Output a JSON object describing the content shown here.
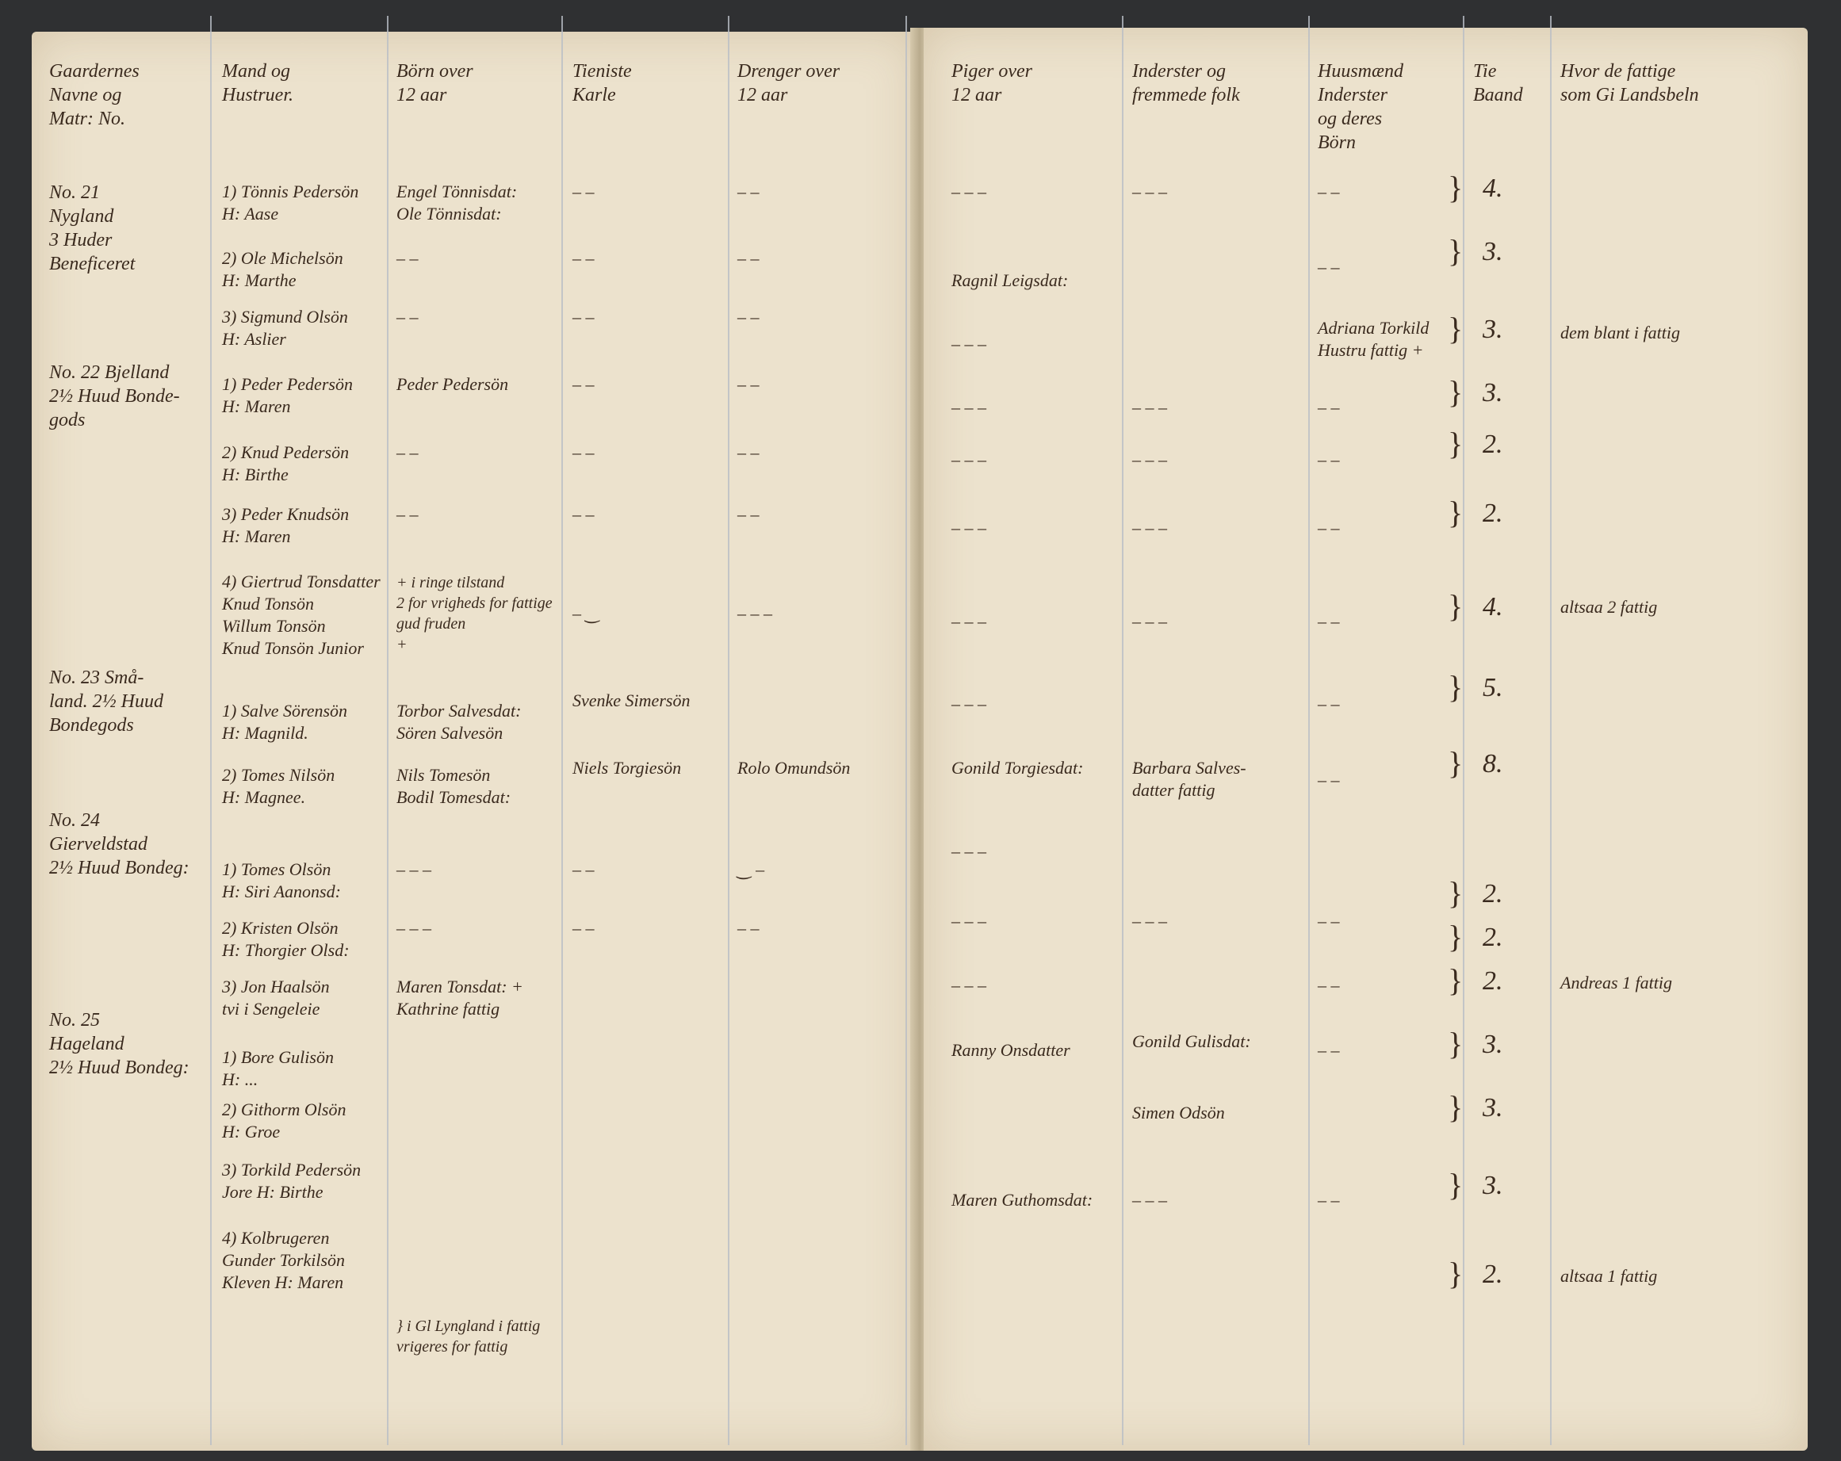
{
  "document": {
    "left_page": {
      "headers": [
        "Gaardernes\nNavne og\nMatr: No.",
        "Mand og\nHustruer.",
        "Börn over\n12 aar",
        "Tieniste\nKarle",
        "Drenger over\n12 aar"
      ],
      "farms": [
        "No. 21\nNygland\n3 Huder\nBeneficeret",
        "No. 22 Bjelland\n2½ Huud Bonde-\ngods",
        "No. 23 Små-\nland. 2½ Huud\nBondegods",
        "No. 24\nGierveldstad\n2½ Huud Bondeg:",
        "No. 25\nHageland\n2½ Huud Bondeg:"
      ],
      "couples": [
        "1) Tönnis Pedersön\nH: Aase",
        "2) Ole Michelsön\nH: Marthe",
        "3) Sigmund Olsön\nH: Aslier",
        "1) Peder Pedersön\nH: Maren",
        "2) Knud Pedersön\nH: Birthe",
        "3) Peder Knudsön\nH: Maren",
        "4) Giertrud Tonsdatter\nKnud Tonsön\nWillum Tonsön\nKnud Tonsön Junior",
        "1) Salve Sörensön\nH: Magnild.",
        "2) Tomes Nilsön\nH: Magnee.",
        "1) Tomes Olsön\nH: Siri Aanonsd:",
        "2) Kristen Olsön\nH: Thorgier Olsd:",
        "3) Jon Haalsön\ntvi i Sengeleie",
        "1) Bore Gulisön\nH: ...",
        "2) Githorm Olsön\nH: Groe",
        "3) Torkild Pedersön\nJore H: Birthe",
        "4) Kolbrugeren\nGunder Torkilsön\nKleven H: Maren"
      ],
      "children_over_12": [
        "Engel Tönnisdat:\nOle Tönnisdat:",
        "–      –",
        "–      –",
        "Peder Pedersön",
        "–      –",
        "–      –",
        "+ i ringe tilstand\n2 for vrigheds for fattige\ngud fruden\n+",
        "Torbor Salvesdat:\nSören Salvesön",
        "Nils Tomesön\nBodil Tomesdat:",
        "–   –   –",
        "–    –  –",
        "Maren Tonsdat:  +\nKathrine fattig",
        "} i Gl Lyngland  i fattig\nvrigeres for fattig"
      ],
      "servants": [
        "–    –",
        "–    –",
        "–    –",
        "–    –",
        "–    –",
        "–    –",
        "–    ‿",
        "Svenke Simersön",
        "Niels Torgiesön",
        "–    –",
        "–    –"
      ],
      "boys_over_12": [
        "–   –",
        "–   –",
        "–   –",
        "–   –",
        "–   –",
        "–   –",
        "–   –   –",
        "Rolo Omundsön",
        "‿   –",
        "–   –"
      ]
    },
    "right_page": {
      "headers": [
        "Piger over\n12 aar",
        "Inderster og\nfremmede folk",
        "Huusmænd\nInderster\nog deres\nBörn",
        "Tie\nBaand",
        "Hvor de fattige\nsom Gi Landsbeln"
      ],
      "girls_over_12": [
        "–   –   –",
        "Ragnil Leigsdat:",
        "–   –   –",
        "–   –   –",
        "–   –   –",
        "–   –   –",
        "–   –   –",
        "–   –   –",
        "Gonild Torgiesdat:",
        "–   –   –",
        "–   –   –",
        "–   –   –",
        "Ranny Onsdatter",
        "Maren Guthomsdat:"
      ],
      "lodgers": [
        "–   –   –",
        "–   –   –",
        "–   –   –",
        "–   –   –",
        "–   –   –",
        "Barbara Salves-\ndatter fattig",
        "–   –   –",
        "Gonild Gulisdat:",
        "Simen Odsön",
        "–   –   –"
      ],
      "cottagers": [
        "–   –",
        "–   –",
        "Adriana Torkild\nHustru fattig  +",
        "–   –",
        "–   –",
        "–   –",
        "–   –",
        "–   –",
        "–  –",
        "–   –",
        "–   –",
        "–   –",
        "–   –"
      ],
      "counts": [
        "4.",
        "3.",
        "3.",
        "3.",
        "2.",
        "2.",
        "4.",
        "5.",
        "8.",
        "2.",
        "2.",
        "2.",
        "3.",
        "3.",
        "3.",
        "2."
      ],
      "poor_notes": [
        "dem blant i fattig",
        "altsaa 2 fattig",
        "Andreas 1 fattig",
        "altsaa 1 fattig"
      ]
    },
    "colors": {
      "paper": "#ece2cd",
      "ink": "#3a2a1e",
      "ruling": "#b9bec6",
      "backdrop": "#2f3032"
    }
  }
}
